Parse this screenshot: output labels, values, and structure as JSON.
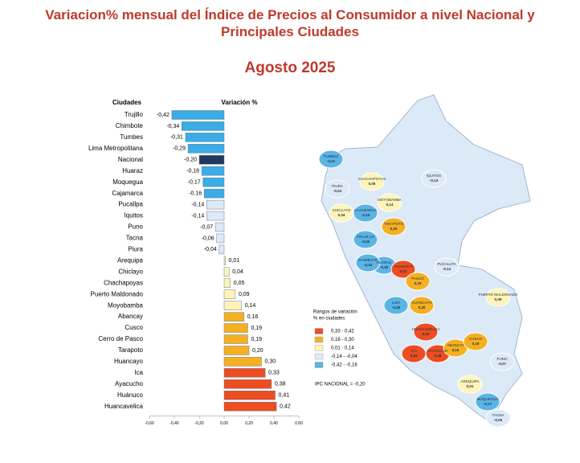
{
  "chart_data": {
    "type": "barh",
    "title_lines": [
      "Variacion% mensual del Índice de Precios al Consumidor a nivel Nacional y",
      "Principales Ciudades"
    ],
    "subtitle": "Agosto 2025",
    "category_header": "Ciudades",
    "value_header": "Variación %",
    "categories": [
      "Trujillo",
      "Chimbote",
      "Tumbes",
      "Lima Metropolitana",
      "Nacional",
      "Huaraz",
      "Moquegua",
      "Cajamarca",
      "Pucallpa",
      "Iquitos",
      "Puno",
      "Tacna",
      "Piura",
      "Arequipa",
      "Chiclayo",
      "Chachapoyas",
      "Puerto Maldonado",
      "Moyobamba",
      "Abancay",
      "Cusco",
      "Cerro de Pasco",
      "Tarapoto",
      "Huancayo",
      "Ica",
      "Ayacucho",
      "Huánuco",
      "Huancavelica"
    ],
    "values": [
      -0.42,
      -0.34,
      -0.31,
      -0.29,
      -0.2,
      -0.18,
      -0.17,
      -0.16,
      -0.14,
      -0.14,
      -0.07,
      -0.06,
      -0.04,
      0.01,
      0.04,
      0.05,
      0.09,
      0.14,
      0.16,
      0.19,
      0.19,
      0.2,
      0.3,
      0.33,
      0.38,
      0.41,
      0.42
    ],
    "value_labels": [
      "-0,42",
      "-0,34",
      "-0,31",
      "-0,29",
      "-0,20",
      "-0,18",
      "-0,17",
      "-0,16",
      "-0,14",
      "-0,14",
      "-0,07",
      "-0,06",
      "-0,04",
      "0,01",
      "0,04",
      "0,05",
      "0,09",
      "0,14",
      "0,16",
      "0,19",
      "0,19",
      "0,20",
      "0,30",
      "0,33",
      "0,38",
      "0,41",
      "0,42"
    ],
    "colors": [
      "#3aace6",
      "#3aace6",
      "#3aace6",
      "#3aace6",
      "#1f3a5f",
      "#3aace6",
      "#3aace6",
      "#3aace6",
      "#dde9f6",
      "#dde9f6",
      "#dde9f6",
      "#dde9f6",
      "#dde9f6",
      "#fff3b8",
      "#fff3b8",
      "#fff3b8",
      "#fff3b8",
      "#fff3b8",
      "#f4b020",
      "#f4b020",
      "#f4b020",
      "#f4b020",
      "#f4b020",
      "#ec4d21",
      "#ec4d21",
      "#ec4d21",
      "#ec4d21"
    ],
    "xlim": [
      -0.6,
      0.6
    ],
    "xticks": [
      {
        "value": -0.6,
        "label": "-0,60"
      },
      {
        "value": -0.4,
        "label": "-0,40"
      },
      {
        "value": -0.2,
        "label": "-0,20"
      },
      {
        "value": 0,
        "label": "0,00"
      },
      {
        "value": 0.2,
        "label": "0,20"
      },
      {
        "value": 0.4,
        "label": "0,40"
      },
      {
        "value": 0.6,
        "label": "0,60"
      }
    ]
  },
  "map": {
    "places": [
      {
        "name": "TUMBES",
        "value": "-0,31",
        "color": "#5bb4e5"
      },
      {
        "name": "PIURA",
        "value": "-0,04",
        "color": "#dde9f6"
      },
      {
        "name": "CHACHAPOYAS",
        "value": "0,05",
        "color": "#fff3b8"
      },
      {
        "name": "MOYOBAMBA",
        "value": "0,14",
        "color": "#fff3b8"
      },
      {
        "name": "CHICLAYO",
        "value": "0,04",
        "color": "#fff3b8"
      },
      {
        "name": "CAJAMARCA",
        "value": "-0,16",
        "color": "#5bb4e5"
      },
      {
        "name": "IQUITOS",
        "value": "-0,14",
        "color": "#dde9f6"
      },
      {
        "name": "TARAPOTO",
        "value": "0,20",
        "color": "#f4b020"
      },
      {
        "name": "TRUJILLO",
        "value": "-0,42",
        "color": "#5bb4e5"
      },
      {
        "name": "HUARAZ",
        "value": "-0,18",
        "color": "#5bb4e5"
      },
      {
        "name": "CHIMBOTE",
        "value": "-0,34",
        "color": "#5bb4e5"
      },
      {
        "name": "HUANUCO",
        "value": "0,41",
        "color": "#ec4d21"
      },
      {
        "name": "PUCALLPA",
        "value": "-0,14",
        "color": "#dde9f6"
      },
      {
        "name": "PASCO",
        "value": "0,19",
        "color": "#f4b020"
      },
      {
        "name": "LIMA",
        "value": "-0,29",
        "color": "#5bb4e5"
      },
      {
        "name": "HUANCAYO",
        "value": "0,30",
        "color": "#f4b020"
      },
      {
        "name": "HUANCAVELICA",
        "value": "0,42",
        "color": "#ec4d21"
      },
      {
        "name": "ICA",
        "value": "0,33",
        "color": "#ec4d21"
      },
      {
        "name": "AYACUCHO",
        "value": "0,38",
        "color": "#ec4d21"
      },
      {
        "name": "ABANCAY",
        "value": "0,16",
        "color": "#f4b020"
      },
      {
        "name": "CUSCO",
        "value": "0,19",
        "color": "#f4b020"
      },
      {
        "name": "PUERTO MALDONADO",
        "value": "0,09",
        "color": "#fff3b8"
      },
      {
        "name": "PUNO",
        "value": "-0,07",
        "color": "#dde9f6"
      },
      {
        "name": "AREQUIPA",
        "value": "0,01",
        "color": "#fff3b8"
      },
      {
        "name": "MOQUEGUA",
        "value": "-0,17",
        "color": "#5bb4e5"
      },
      {
        "name": "TACNA",
        "value": "-0,06",
        "color": "#dde9f6"
      }
    ],
    "legend_title": [
      "Rangos de variación",
      "% en ciudades"
    ],
    "legend": [
      {
        "label": "0,33 - 0,42",
        "color": "#ec4d21"
      },
      {
        "label": "0,16 - 0,30",
        "color": "#f4b020"
      },
      {
        "label": "0,01 - 0,14",
        "color": "#fff3b8"
      },
      {
        "label": "-0,14 - -0,04",
        "color": "#dde9f6"
      },
      {
        "label": "-0,42 - -0,16",
        "color": "#5bb4e5"
      }
    ],
    "note": "IPC NACIONAL = -0,20"
  }
}
